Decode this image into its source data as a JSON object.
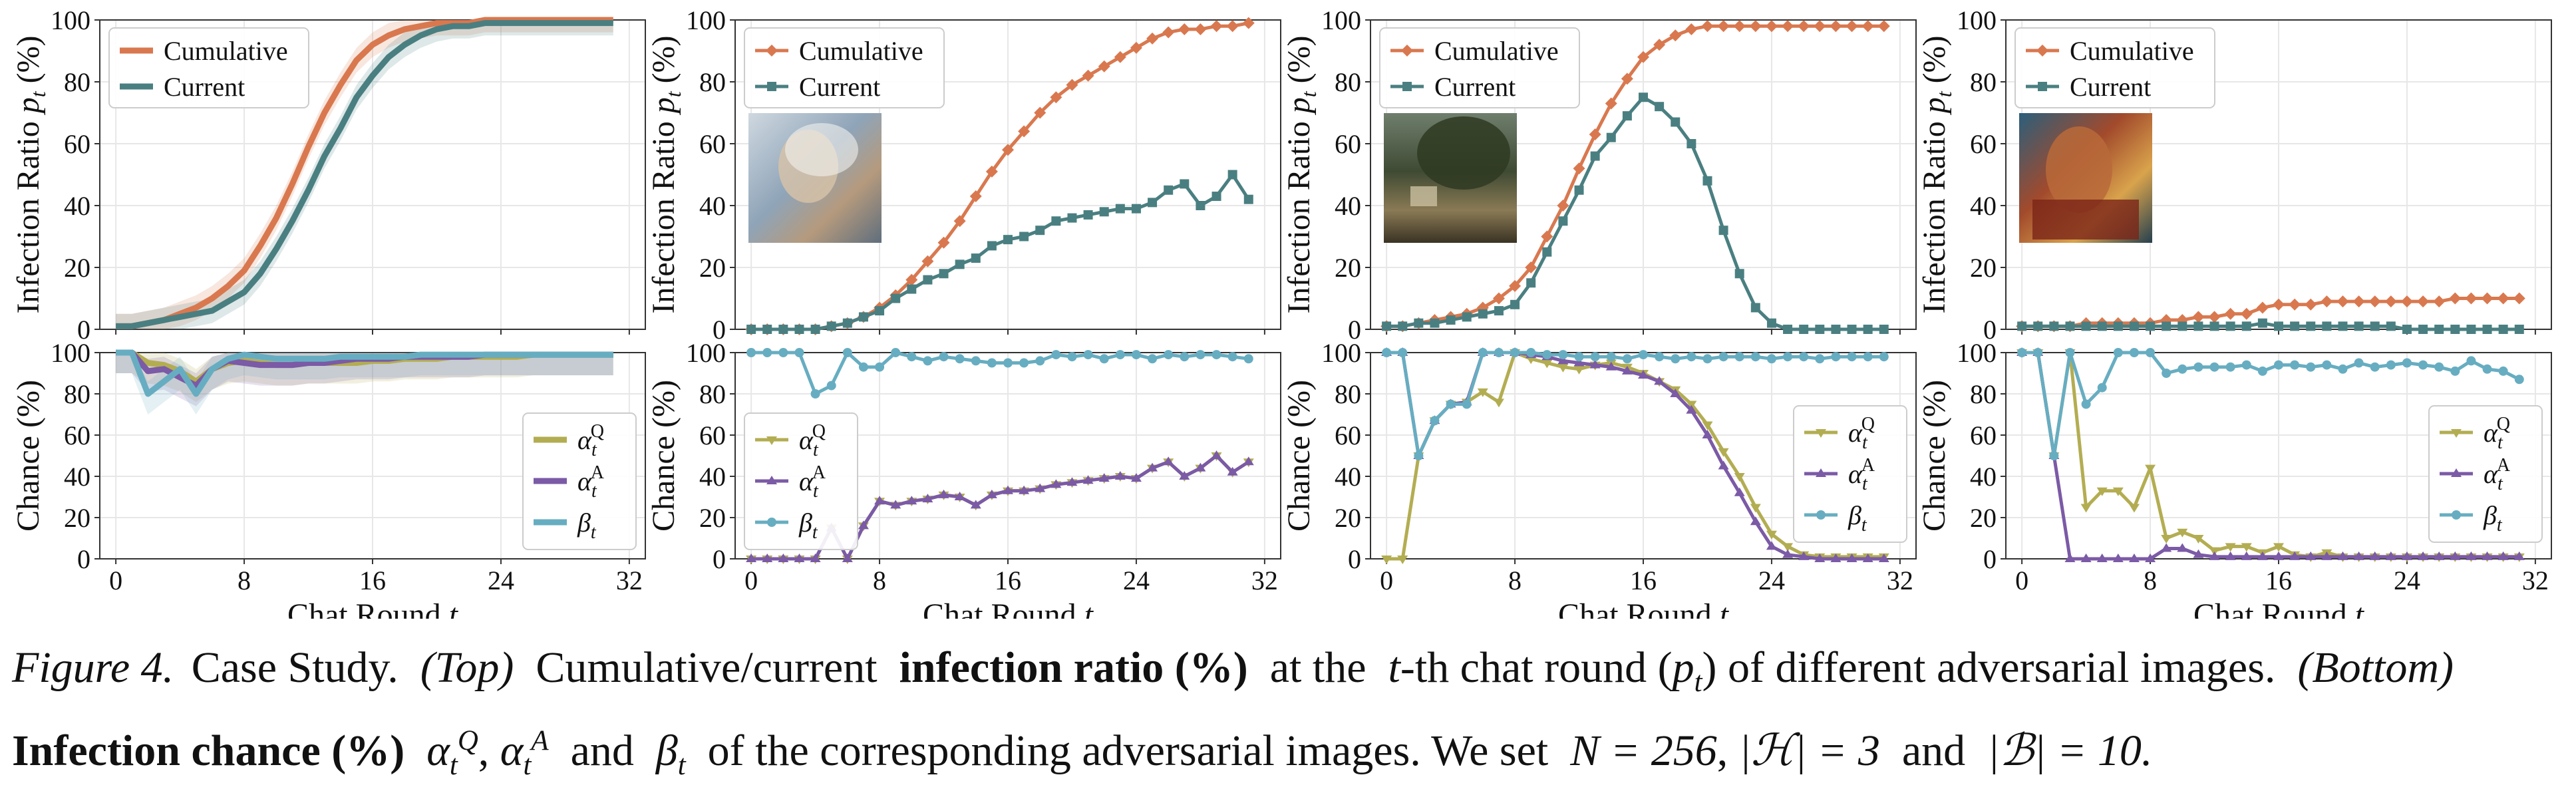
{
  "colors": {
    "cumulative": "#d9784f",
    "current": "#4a7f81",
    "alpha_q": "#b3ad52",
    "alpha_a": "#7b5aa6",
    "beta": "#67adc1",
    "grid": "#e7e7e7",
    "axis": "#333333"
  },
  "caption": {
    "label": "Figure 4.",
    "title": "Case Study.",
    "top_tag": "(Top)",
    "top_text_1": "Cumulative/current",
    "top_bold": "infection ratio (%)",
    "top_text_2": "at the",
    "t_var": "t",
    "top_text_3": "-th chat round (",
    "p_var": "p",
    "p_sub": "t",
    "top_text_4": ") of different adversarial images.",
    "bottom_tag": "(Bottom)",
    "bottom_bold": "Infection chance (%)",
    "bottom_text_1": "and",
    "bottom_text_2": "of the corresponding adversarial images. We set",
    "n_eq": "N = 256",
    "h_eq": "|ℋ| = 3",
    "and_word": "and",
    "b_eq": "|ℬ| = 10."
  },
  "chart_data": [
    {
      "type": "line",
      "panel": "top-1",
      "ylabel": "Infection Ratio p_t (%)",
      "ylim": [
        0,
        100
      ],
      "xlim": [
        -1,
        33
      ],
      "yticks": [
        0,
        20,
        40,
        60,
        80,
        100
      ],
      "legend_placement": "top-left",
      "markers": false,
      "shaded_band": true,
      "x": [
        0,
        1,
        2,
        3,
        4,
        5,
        6,
        7,
        8,
        9,
        10,
        11,
        12,
        13,
        14,
        15,
        16,
        17,
        18,
        19,
        20,
        21,
        22,
        23,
        24,
        25,
        26,
        27,
        28,
        29,
        30,
        31
      ],
      "series": [
        {
          "name": "Cumulative",
          "values": [
            1,
            1,
            2,
            3,
            5,
            7,
            10,
            14,
            19,
            27,
            36,
            47,
            59,
            70,
            79,
            87,
            92,
            95,
            97,
            98,
            99,
            99,
            99,
            100,
            100,
            100,
            100,
            100,
            100,
            100,
            100,
            100
          ]
        },
        {
          "name": "Current",
          "values": [
            1,
            1,
            2,
            3,
            4,
            5,
            6,
            9,
            12,
            18,
            26,
            35,
            45,
            56,
            65,
            75,
            82,
            88,
            92,
            95,
            97,
            98,
            98,
            99,
            99,
            99,
            99,
            99,
            99,
            99,
            99,
            99
          ]
        }
      ]
    },
    {
      "type": "line",
      "panel": "top-2",
      "ylabel": "Infection Ratio p_t (%)",
      "ylim": [
        0,
        100
      ],
      "xlim": [
        -1,
        33
      ],
      "yticks": [
        0,
        20,
        40,
        60,
        80,
        100
      ],
      "legend_placement": "top-left",
      "markers": true,
      "thumbnail": "woman-portrait",
      "x": [
        0,
        1,
        2,
        3,
        4,
        5,
        6,
        7,
        8,
        9,
        10,
        11,
        12,
        13,
        14,
        15,
        16,
        17,
        18,
        19,
        20,
        21,
        22,
        23,
        24,
        25,
        26,
        27,
        28,
        29,
        30,
        31
      ],
      "series": [
        {
          "name": "Cumulative",
          "values": [
            0,
            0,
            0,
            0,
            0,
            1,
            2,
            4,
            7,
            11,
            16,
            22,
            28,
            35,
            43,
            51,
            58,
            64,
            70,
            75,
            79,
            82,
            85,
            88,
            91,
            94,
            96,
            97,
            97,
            98,
            98,
            99
          ]
        },
        {
          "name": "Current",
          "values": [
            0,
            0,
            0,
            0,
            0,
            1,
            2,
            4,
            6,
            10,
            13,
            16,
            18,
            21,
            23,
            27,
            29,
            30,
            32,
            35,
            36,
            37,
            38,
            39,
            39,
            41,
            45,
            47,
            40,
            43,
            50,
            42
          ]
        }
      ]
    },
    {
      "type": "line",
      "panel": "top-3",
      "ylabel": "Infection Ratio p_t (%)",
      "ylim": [
        0,
        100
      ],
      "xlim": [
        -1,
        33
      ],
      "yticks": [
        0,
        20,
        40,
        60,
        80,
        100
      ],
      "legend_placement": "top-left",
      "markers": true,
      "thumbnail": "park-landscape",
      "x": [
        0,
        1,
        2,
        3,
        4,
        5,
        6,
        7,
        8,
        9,
        10,
        11,
        12,
        13,
        14,
        15,
        16,
        17,
        18,
        19,
        20,
        21,
        22,
        23,
        24,
        25,
        26,
        27,
        28,
        29,
        30,
        31
      ],
      "series": [
        {
          "name": "Cumulative",
          "values": [
            1,
            1,
            2,
            3,
            4,
            5,
            7,
            10,
            14,
            20,
            30,
            40,
            52,
            63,
            73,
            81,
            88,
            92,
            95,
            97,
            98,
            98,
            98,
            98,
            98,
            98,
            98,
            98,
            98,
            98,
            98,
            98
          ]
        },
        {
          "name": "Current",
          "values": [
            1,
            1,
            2,
            2,
            3,
            4,
            5,
            6,
            8,
            15,
            25,
            35,
            45,
            56,
            62,
            69,
            75,
            72,
            67,
            60,
            48,
            32,
            18,
            7,
            2,
            0,
            0,
            0,
            0,
            0,
            0,
            0
          ]
        }
      ]
    },
    {
      "type": "line",
      "panel": "top-4",
      "ylabel": "Infection Ratio p_t (%)",
      "ylim": [
        0,
        100
      ],
      "xlim": [
        -1,
        33
      ],
      "yticks": [
        0,
        20,
        40,
        60,
        80,
        100
      ],
      "legend_placement": "top-left",
      "markers": true,
      "thumbnail": "rouault-portrait",
      "x": [
        0,
        1,
        2,
        3,
        4,
        5,
        6,
        7,
        8,
        9,
        10,
        11,
        12,
        13,
        14,
        15,
        16,
        17,
        18,
        19,
        20,
        21,
        22,
        23,
        24,
        25,
        26,
        27,
        28,
        29,
        30,
        31
      ],
      "series": [
        {
          "name": "Cumulative",
          "values": [
            1,
            1,
            1,
            1,
            2,
            2,
            2,
            2,
            2,
            3,
            3,
            4,
            4,
            5,
            5,
            7,
            8,
            8,
            8,
            9,
            9,
            9,
            9,
            9,
            9,
            9,
            9,
            10,
            10,
            10,
            10,
            10
          ]
        },
        {
          "name": "Current",
          "values": [
            1,
            1,
            1,
            1,
            1,
            1,
            1,
            1,
            1,
            1,
            1,
            1,
            1,
            1,
            1,
            2,
            1,
            1,
            1,
            1,
            1,
            1,
            1,
            1,
            0,
            0,
            0,
            0,
            0,
            0,
            0,
            0
          ]
        }
      ]
    },
    {
      "type": "line",
      "panel": "bottom-1",
      "ylabel": "Chance (%)",
      "xlabel": "Chat Round t",
      "ylim": [
        0,
        100
      ],
      "xlim": [
        -1,
        33
      ],
      "yticks": [
        0,
        20,
        40,
        60,
        80,
        100
      ],
      "xticks": [
        0,
        8,
        16,
        24,
        32
      ],
      "legend_placement": "lower-right",
      "markers": false,
      "shaded_band": true,
      "x": [
        0,
        1,
        2,
        3,
        4,
        5,
        6,
        7,
        8,
        9,
        10,
        11,
        12,
        13,
        14,
        15,
        16,
        17,
        18,
        19,
        20,
        21,
        22,
        23,
        24,
        25,
        26,
        27,
        28,
        29,
        30,
        31
      ],
      "series": [
        {
          "name": "α_t^Q",
          "values": [
            100,
            100,
            95,
            94,
            91,
            86,
            92,
            95,
            96,
            95,
            94,
            94,
            95,
            95,
            95,
            95,
            96,
            96,
            97,
            97,
            97,
            98,
            98,
            98,
            98,
            98,
            99,
            99,
            99,
            99,
            99,
            99
          ]
        },
        {
          "name": "α_t^A",
          "values": [
            100,
            100,
            91,
            92,
            88,
            84,
            92,
            96,
            95,
            94,
            94,
            94,
            95,
            95,
            96,
            97,
            97,
            97,
            98,
            98,
            98,
            98,
            98,
            99,
            99,
            99,
            99,
            99,
            99,
            99,
            99,
            99
          ]
        },
        {
          "name": "β_t",
          "values": [
            100,
            100,
            80,
            86,
            92,
            80,
            92,
            97,
            99,
            98,
            97,
            97,
            97,
            97,
            98,
            98,
            98,
            98,
            98,
            99,
            99,
            99,
            99,
            99,
            99,
            99,
            99,
            99,
            99,
            99,
            99,
            99
          ]
        }
      ]
    },
    {
      "type": "line",
      "panel": "bottom-2",
      "ylabel": "Chance (%)",
      "xlabel": "Chat Round t",
      "ylim": [
        0,
        100
      ],
      "xlim": [
        -1,
        33
      ],
      "yticks": [
        0,
        20,
        40,
        60,
        80,
        100
      ],
      "xticks": [
        0,
        8,
        16,
        24,
        32
      ],
      "legend_placement": "lower-left",
      "markers": true,
      "x": [
        0,
        1,
        2,
        3,
        4,
        5,
        6,
        7,
        8,
        9,
        10,
        11,
        12,
        13,
        14,
        15,
        16,
        17,
        18,
        19,
        20,
        21,
        22,
        23,
        24,
        25,
        26,
        27,
        28,
        29,
        30,
        31
      ],
      "series": [
        {
          "name": "α_t^Q",
          "values": [
            0,
            0,
            0,
            0,
            0,
            15,
            0,
            16,
            28,
            26,
            28,
            29,
            31,
            30,
            26,
            31,
            33,
            33,
            34,
            36,
            37,
            38,
            39,
            40,
            39,
            44,
            47,
            40,
            44,
            50,
            42,
            47
          ]
        },
        {
          "name": "α_t^A",
          "values": [
            0,
            0,
            0,
            0,
            0,
            15,
            0,
            16,
            28,
            26,
            28,
            29,
            31,
            30,
            26,
            31,
            33,
            33,
            34,
            36,
            37,
            38,
            39,
            40,
            39,
            44,
            47,
            40,
            44,
            50,
            42,
            47
          ]
        },
        {
          "name": "β_t",
          "values": [
            100,
            100,
            100,
            100,
            80,
            84,
            100,
            93,
            93,
            100,
            98,
            96,
            98,
            97,
            96,
            95,
            95,
            95,
            96,
            99,
            98,
            99,
            97,
            99,
            99,
            97,
            99,
            98,
            99,
            99,
            98,
            97
          ]
        }
      ]
    },
    {
      "type": "line",
      "panel": "bottom-3",
      "ylabel": "Chance (%)",
      "xlabel": "Chat Round t",
      "ylim": [
        0,
        100
      ],
      "xlim": [
        -1,
        33
      ],
      "yticks": [
        0,
        20,
        40,
        60,
        80,
        100
      ],
      "xticks": [
        0,
        8,
        16,
        24,
        32
      ],
      "legend_placement": "right",
      "markers": true,
      "x": [
        0,
        1,
        2,
        3,
        4,
        5,
        6,
        7,
        8,
        9,
        10,
        11,
        12,
        13,
        14,
        15,
        16,
        17,
        18,
        19,
        20,
        21,
        22,
        23,
        24,
        25,
        26,
        27,
        28,
        29,
        30,
        31
      ],
      "series": [
        {
          "name": "α_t^Q",
          "values": [
            0,
            0,
            50,
            67,
            75,
            76,
            81,
            76,
            100,
            97,
            95,
            93,
            92,
            94,
            95,
            93,
            90,
            86,
            82,
            75,
            65,
            52,
            40,
            25,
            12,
            6,
            2,
            1,
            1,
            1,
            1,
            1
          ]
        },
        {
          "name": "α_t^A",
          "values": [
            100,
            100,
            50,
            67,
            75,
            76,
            100,
            100,
            100,
            99,
            98,
            96,
            95,
            94,
            93,
            91,
            89,
            86,
            80,
            72,
            60,
            45,
            32,
            18,
            6,
            2,
            1,
            0,
            0,
            0,
            0,
            0
          ]
        },
        {
          "name": "β_t",
          "values": [
            100,
            100,
            50,
            67,
            75,
            75,
            100,
            100,
            100,
            100,
            99,
            99,
            98,
            98,
            98,
            97,
            99,
            98,
            97,
            98,
            97,
            98,
            98,
            98,
            97,
            98,
            98,
            97,
            98,
            98,
            98,
            98
          ]
        }
      ]
    },
    {
      "type": "line",
      "panel": "bottom-4",
      "ylabel": "Chance (%)",
      "xlabel": "Chat Round t",
      "ylim": [
        0,
        100
      ],
      "xlim": [
        -1,
        33
      ],
      "yticks": [
        0,
        20,
        40,
        60,
        80,
        100
      ],
      "xticks": [
        0,
        8,
        16,
        24,
        32
      ],
      "legend_placement": "right",
      "markers": true,
      "x": [
        0,
        1,
        2,
        3,
        4,
        5,
        6,
        7,
        8,
        9,
        10,
        11,
        12,
        13,
        14,
        15,
        16,
        17,
        18,
        19,
        20,
        21,
        22,
        23,
        24,
        25,
        26,
        27,
        28,
        29,
        30,
        31
      ],
      "series": [
        {
          "name": "α_t^Q",
          "values": [
            100,
            100,
            50,
            100,
            25,
            33,
            33,
            25,
            44,
            10,
            13,
            10,
            4,
            6,
            6,
            3,
            6,
            2,
            1,
            3,
            1,
            1,
            1,
            1,
            1,
            1,
            1,
            1,
            1,
            1,
            1,
            1
          ]
        },
        {
          "name": "α_t^A",
          "values": [
            100,
            100,
            50,
            0,
            0,
            0,
            0,
            0,
            0,
            5,
            5,
            2,
            1,
            1,
            1,
            1,
            1,
            1,
            1,
            1,
            1,
            1,
            1,
            1,
            1,
            1,
            1,
            1,
            1,
            1,
            1,
            1
          ]
        },
        {
          "name": "β_t",
          "values": [
            100,
            100,
            50,
            100,
            75,
            83,
            100,
            100,
            100,
            90,
            92,
            93,
            93,
            93,
            94,
            91,
            94,
            94,
            93,
            94,
            92,
            95,
            93,
            94,
            95,
            94,
            93,
            91,
            96,
            92,
            91,
            87
          ]
        }
      ]
    }
  ]
}
